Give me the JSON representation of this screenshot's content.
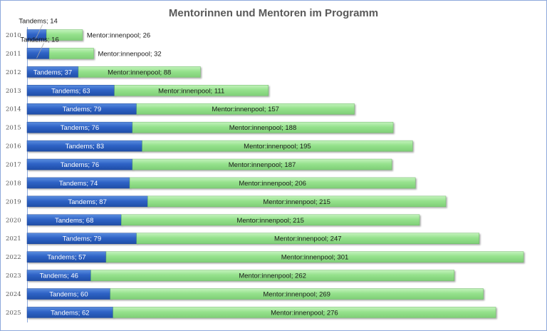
{
  "chart_data": {
    "type": "bar",
    "orientation": "horizontal",
    "stacked": true,
    "title": "Mentorinnen und Mentoren im Programm",
    "xlabel": "",
    "ylabel": "",
    "grid": false,
    "legend": "none",
    "categories": [
      "2010",
      "2011",
      "2012",
      "2013",
      "2014",
      "2015",
      "2016",
      "2017",
      "2018",
      "2019",
      "2020",
      "2021",
      "2022",
      "2023",
      "2024",
      "2025"
    ],
    "series": [
      {
        "name": "Tandems",
        "color": "#2e62c4",
        "values": [
          14,
          16,
          37,
          63,
          79,
          76,
          83,
          76,
          74,
          87,
          68,
          79,
          57,
          46,
          60,
          62
        ]
      },
      {
        "name": "Mentor:innenpool",
        "color": "#92e08a",
        "values": [
          26,
          32,
          88,
          111,
          157,
          188,
          195,
          187,
          206,
          215,
          215,
          247,
          301,
          262,
          269,
          276
        ]
      }
    ],
    "data_label_format": "{series}; {value}"
  }
}
